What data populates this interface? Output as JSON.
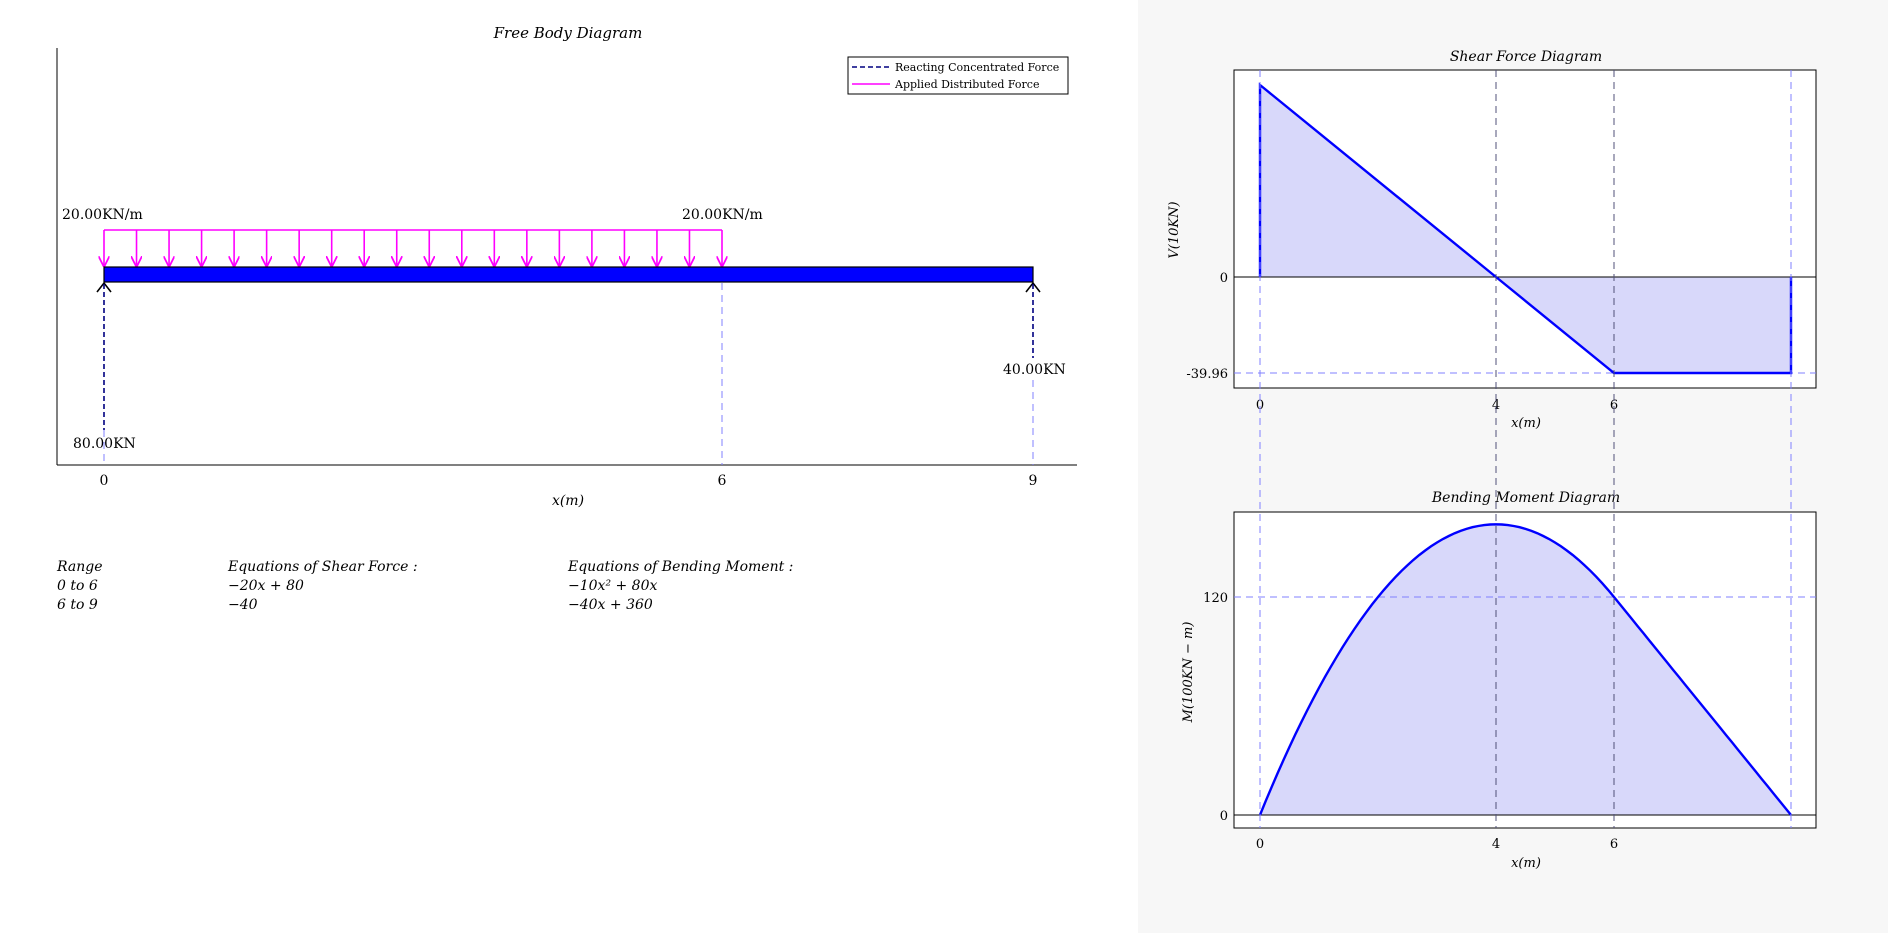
{
  "fbd": {
    "title": "Free Body Diagram",
    "legend": {
      "reaction": "Reacting Concentrated Force",
      "distributed": "Applied Distributed Force"
    },
    "load_label_left": "20.00KN/m",
    "load_label_right": "20.00KN/m",
    "reaction_left": "80.00KN",
    "reaction_right": "40.00KN",
    "x_ticks": [
      "0",
      "6",
      "9"
    ],
    "xlabel": "x(m)",
    "colors": {
      "beam": "#0000ff",
      "load": "#ff00ff",
      "reaction": "#000080"
    }
  },
  "equations": {
    "headers": {
      "range": "Range",
      "shear": "Equations of Shear Force :",
      "moment": "Equations of Bending Moment :"
    },
    "rows": [
      {
        "range": "0 to 6",
        "shear": "−20x + 80",
        "moment": "−10x² + 80x"
      },
      {
        "range": "6 to 9",
        "shear": "−40",
        "moment": "−40x + 360"
      }
    ]
  },
  "chart_data": [
    {
      "type": "area",
      "title": "Shear Force Diagram",
      "xlabel": "x(m)",
      "ylabel": "V(10KN)",
      "x": [
        0,
        0,
        4,
        6,
        9,
        9
      ],
      "y": [
        0,
        80,
        0,
        -40,
        -40,
        0
      ],
      "x_ticks": [
        "0",
        "4",
        "6"
      ],
      "y_ticks": [
        "0",
        "-39.96"
      ],
      "color": "#0000ff"
    },
    {
      "type": "area",
      "title": "Bending Moment Diagram",
      "xlabel": "x(m)",
      "ylabel": "M(100KN − m)",
      "x": [
        0,
        1,
        2,
        3,
        4,
        5,
        6,
        7,
        8,
        9
      ],
      "y": [
        0,
        70,
        120,
        150,
        160,
        150,
        120,
        80,
        40,
        0
      ],
      "x_ticks": [
        "0",
        "4",
        "6"
      ],
      "y_ticks": [
        "0",
        "120"
      ],
      "color": "#0000ff"
    }
  ]
}
